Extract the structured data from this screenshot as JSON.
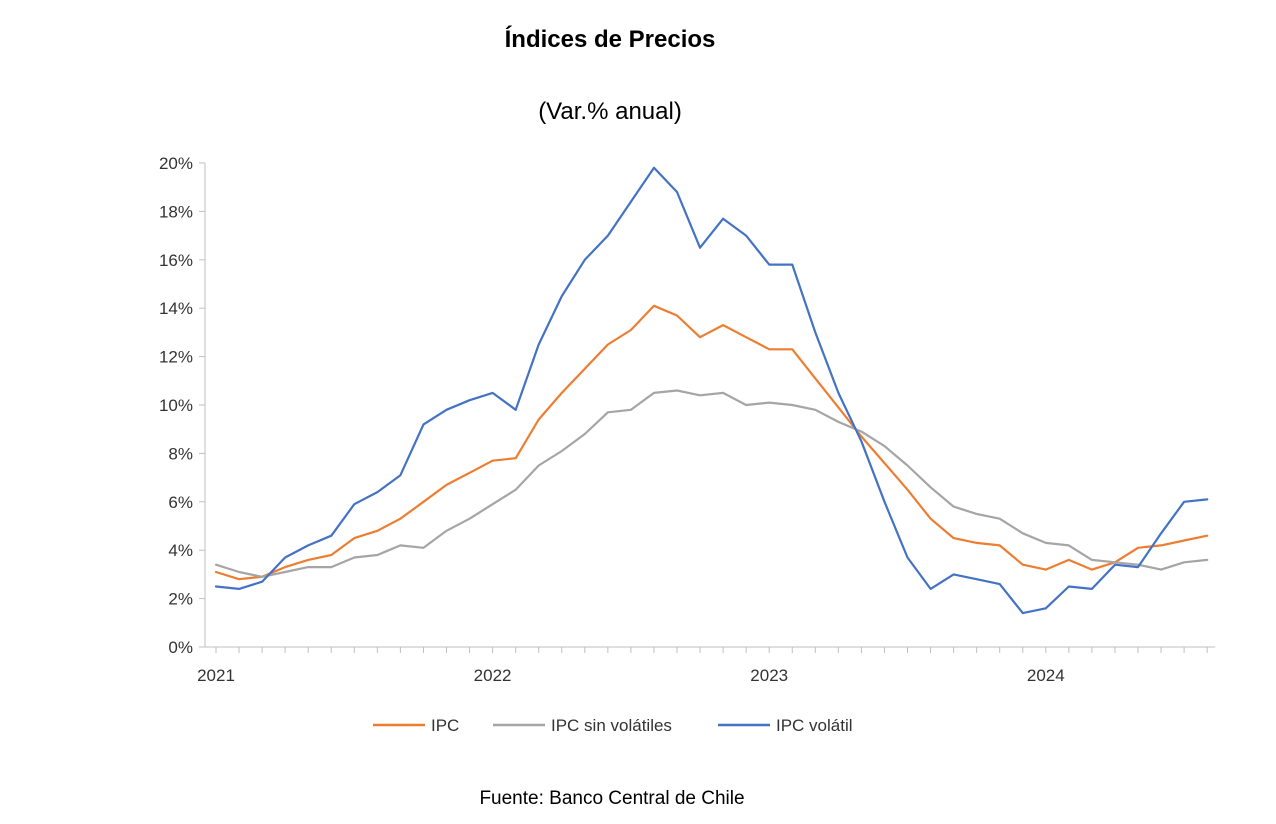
{
  "chart_data": {
    "type": "line",
    "title": "Índices de Precios",
    "subtitle": "(Var.% anual)",
    "ylim": [
      0,
      20
    ],
    "yticks": [
      0,
      2,
      4,
      6,
      8,
      10,
      12,
      14,
      16,
      18,
      20
    ],
    "ytick_labels": [
      "0%",
      "2%",
      "4%",
      "6%",
      "8%",
      "10%",
      "12%",
      "14%",
      "16%",
      "18%",
      "20%"
    ],
    "x_start": "2021-01",
    "x_end": "2024-08",
    "xtick_labels": [
      {
        "label": "2021",
        "month_index": 0
      },
      {
        "label": "2022",
        "month_index": 12
      },
      {
        "label": "2023",
        "month_index": 24
      },
      {
        "label": "2024",
        "month_index": 36
      }
    ],
    "x": [
      "2021-01",
      "2021-02",
      "2021-03",
      "2021-04",
      "2021-05",
      "2021-06",
      "2021-07",
      "2021-08",
      "2021-09",
      "2021-10",
      "2021-11",
      "2021-12",
      "2022-01",
      "2022-02",
      "2022-03",
      "2022-04",
      "2022-05",
      "2022-06",
      "2022-07",
      "2022-08",
      "2022-09",
      "2022-10",
      "2022-11",
      "2022-12",
      "2023-01",
      "2023-02",
      "2023-03",
      "2023-04",
      "2023-05",
      "2023-06",
      "2023-07",
      "2023-08",
      "2023-09",
      "2023-10",
      "2023-11",
      "2023-12",
      "2024-01",
      "2024-02",
      "2024-03",
      "2024-04",
      "2024-05",
      "2024-06",
      "2024-07",
      "2024-08"
    ],
    "grid": false,
    "legend_position": "bottom",
    "series": [
      {
        "name": "IPC",
        "color": "#ED7D31",
        "values": [
          3.1,
          2.8,
          2.9,
          3.3,
          3.6,
          3.8,
          4.5,
          4.8,
          5.3,
          6.0,
          6.7,
          7.2,
          7.7,
          7.8,
          9.4,
          10.5,
          11.5,
          12.5,
          13.1,
          14.1,
          13.7,
          12.8,
          13.3,
          12.8,
          12.3,
          12.3,
          11.1,
          9.9,
          8.7,
          7.6,
          6.5,
          5.3,
          4.5,
          4.3,
          4.2,
          3.4,
          3.2,
          3.6,
          3.2,
          3.5,
          4.1,
          4.2,
          4.4,
          4.6
        ]
      },
      {
        "name": "IPC sin volátiles",
        "color": "#A5A5A5",
        "values": [
          3.4,
          3.1,
          2.9,
          3.1,
          3.3,
          3.3,
          3.7,
          3.8,
          4.2,
          4.1,
          4.8,
          5.3,
          5.9,
          6.5,
          7.5,
          8.1,
          8.8,
          9.7,
          9.8,
          10.5,
          10.6,
          10.4,
          10.5,
          10.0,
          10.1,
          10.0,
          9.8,
          9.3,
          8.9,
          8.3,
          7.5,
          6.6,
          5.8,
          5.5,
          5.3,
          4.7,
          4.3,
          4.2,
          3.6,
          3.5,
          3.4,
          3.2,
          3.5,
          3.6
        ]
      },
      {
        "name": "IPC volátil",
        "color": "#4472C4",
        "values": [
          2.5,
          2.4,
          2.7,
          3.7,
          4.2,
          4.6,
          5.9,
          6.4,
          7.1,
          9.2,
          9.8,
          10.2,
          10.5,
          9.8,
          12.5,
          14.5,
          16.0,
          17.0,
          18.4,
          19.8,
          18.8,
          16.5,
          17.7,
          17.0,
          15.8,
          15.8,
          13.0,
          10.5,
          8.5,
          6.0,
          3.7,
          2.4,
          3.0,
          2.8,
          2.6,
          1.4,
          1.6,
          2.5,
          2.4,
          3.4,
          3.3,
          4.7,
          6.0,
          6.1
        ]
      }
    ],
    "source": "Fuente: Banco Central de Chile"
  }
}
